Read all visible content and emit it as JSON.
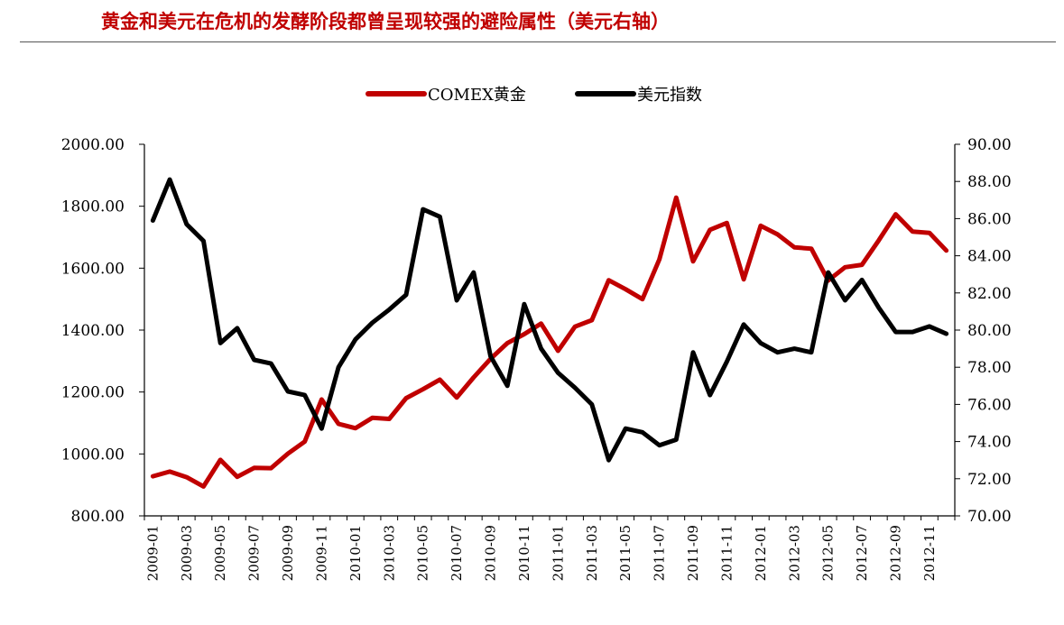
{
  "title": "黄金和美元在危机的发酵阶段都曾呈现较强的避险属性（美元右轴）",
  "chart_data": {
    "type": "line",
    "title": "黄金和美元在危机的发酵阶段都曾呈现较强的避险属性（美元右轴）",
    "x": [
      "2009-01",
      "2009-02",
      "2009-03",
      "2009-04",
      "2009-05",
      "2009-06",
      "2009-07",
      "2009-08",
      "2009-09",
      "2009-10",
      "2009-11",
      "2009-12",
      "2010-01",
      "2010-02",
      "2010-03",
      "2010-04",
      "2010-05",
      "2010-06",
      "2010-07",
      "2010-08",
      "2010-09",
      "2010-10",
      "2010-11",
      "2010-12",
      "2011-01",
      "2011-02",
      "2011-03",
      "2011-04",
      "2011-05",
      "2011-06",
      "2011-07",
      "2011-08",
      "2011-09",
      "2011-10",
      "2011-11",
      "2011-12",
      "2012-01",
      "2012-02",
      "2012-03",
      "2012-04",
      "2012-05",
      "2012-06",
      "2012-07",
      "2012-08",
      "2012-09",
      "2012-10",
      "2012-11",
      "2012-12"
    ],
    "xticks": [
      "2009-01",
      "2009-03",
      "2009-05",
      "2009-07",
      "2009-09",
      "2009-11",
      "2010-01",
      "2010-03",
      "2010-05",
      "2010-07",
      "2010-09",
      "2010-11",
      "2011-01",
      "2011-03",
      "2011-05",
      "2011-07",
      "2011-09",
      "2011-11",
      "2012-01",
      "2012-03",
      "2012-05",
      "2012-07",
      "2012-09",
      "2012-11"
    ],
    "y_left": {
      "ylim": [
        800,
        2000
      ],
      "ticks": [
        "800.00",
        "1000.00",
        "1200.00",
        "1400.00",
        "1600.00",
        "1800.00",
        "2000.00"
      ]
    },
    "y_right": {
      "ylim": [
        70,
        90
      ],
      "ticks": [
        "70.00",
        "72.00",
        "74.00",
        "76.00",
        "78.00",
        "80.00",
        "82.00",
        "84.00",
        "86.00",
        "88.00",
        "90.00"
      ]
    },
    "legend": "top-center",
    "series": [
      {
        "name": "COMEX黄金",
        "axis": "left",
        "color": "#c00000",
        "values": [
          928,
          943,
          925,
          895,
          981,
          926,
          955,
          954,
          1001,
          1040,
          1176,
          1097,
          1083,
          1117,
          1113,
          1180,
          1209,
          1240,
          1182,
          1247,
          1307,
          1358,
          1387,
          1421,
          1333,
          1411,
          1432,
          1561,
          1532,
          1500,
          1628,
          1828,
          1622,
          1724,
          1746,
          1564,
          1737,
          1709,
          1667,
          1663,
          1560,
          1603,
          1611,
          1690,
          1774,
          1718,
          1714,
          1657
        ]
      },
      {
        "name": "美元指数",
        "axis": "right",
        "color": "#000000",
        "values": [
          85.9,
          88.1,
          85.7,
          84.8,
          79.3,
          80.1,
          78.4,
          78.2,
          76.7,
          76.5,
          74.7,
          78.0,
          79.5,
          80.4,
          81.1,
          81.9,
          86.5,
          86.1,
          81.6,
          83.1,
          78.6,
          77.0,
          81.4,
          79.0,
          77.7,
          76.9,
          76.0,
          73.0,
          74.7,
          74.5,
          73.8,
          74.1,
          78.8,
          76.5,
          78.3,
          80.3,
          79.3,
          78.8,
          79.0,
          78.8,
          83.1,
          81.6,
          82.7,
          81.2,
          79.9,
          79.9,
          80.2,
          79.8
        ]
      }
    ]
  }
}
